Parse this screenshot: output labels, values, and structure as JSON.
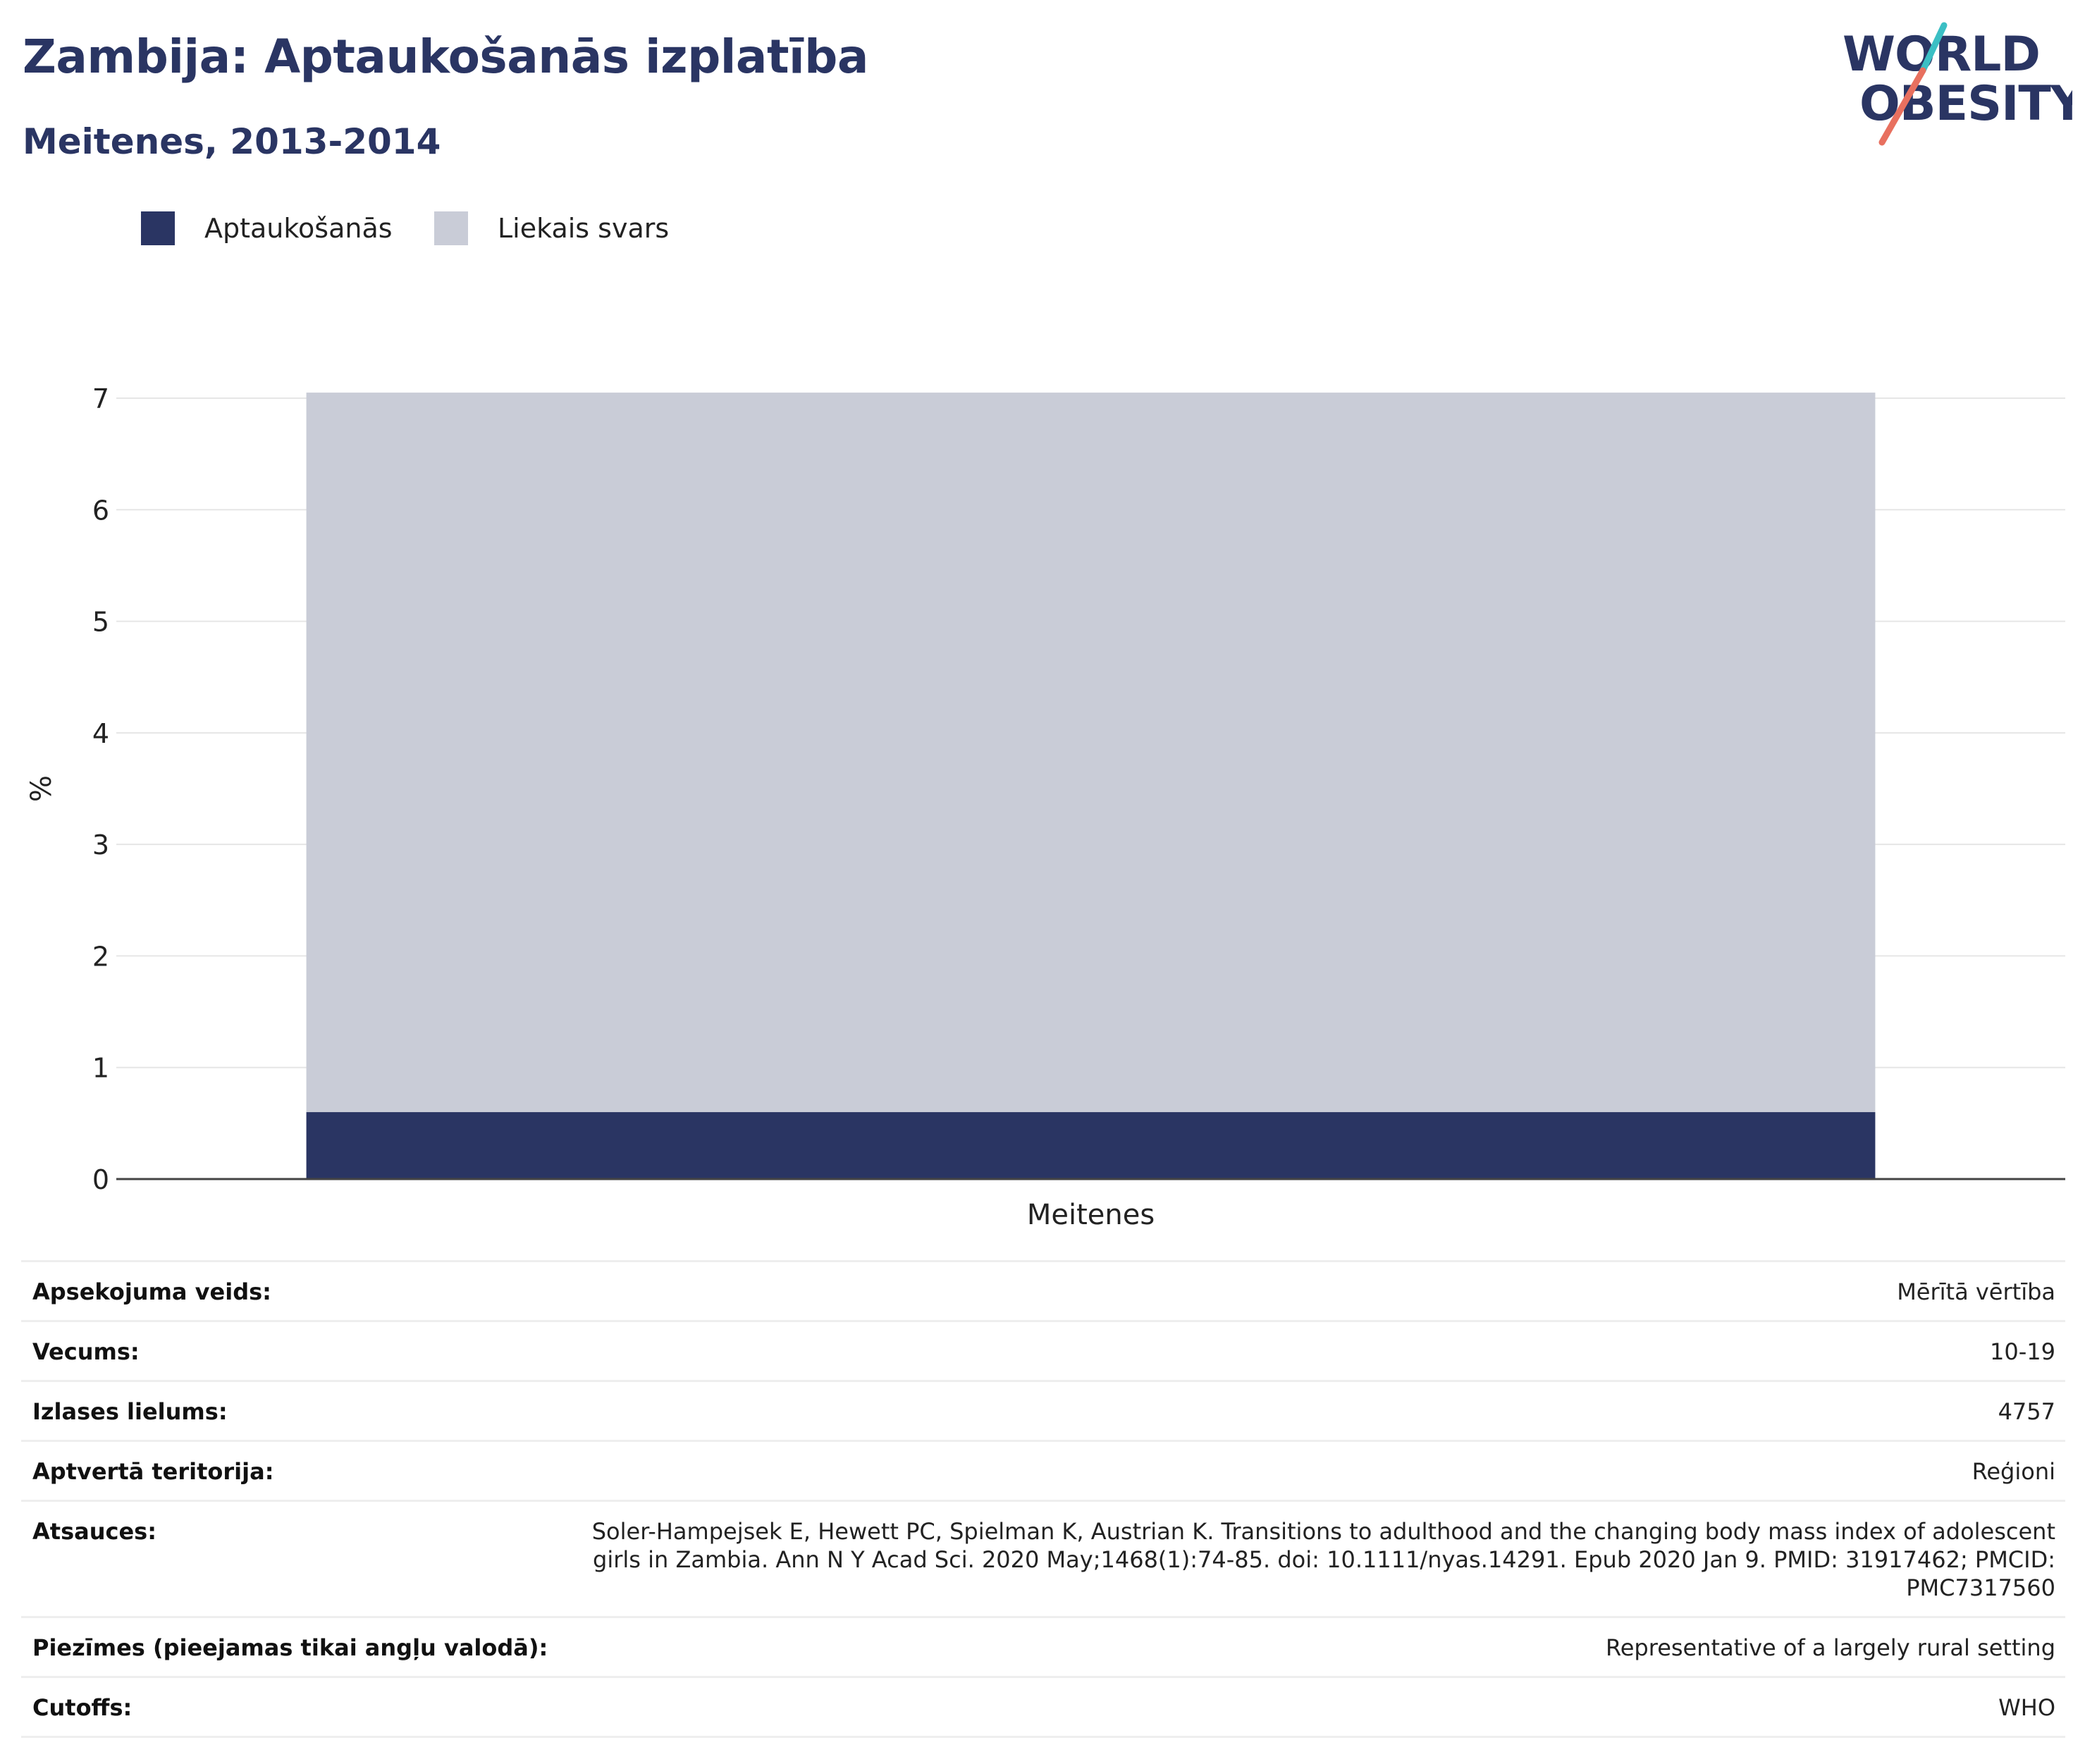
{
  "header": {
    "title": "Zambija: Aptaukošanās izplatība",
    "subtitle": "Meitenes, 2013-2014"
  },
  "logo": {
    "line1": "WORLD",
    "line2": "OBESITY",
    "colors": {
      "text": "#2a3563",
      "slash_top": "#3bbfc4",
      "slash_bottom": "#e8705f"
    }
  },
  "colors": {
    "obesity": "#2a3563",
    "overweight": "#c9ccd7",
    "title": "#2a3563"
  },
  "chart_data": {
    "type": "bar",
    "stacked": true,
    "categories": [
      "Meitenes"
    ],
    "series": [
      {
        "name": "Aptaukošanās",
        "values": [
          0.6
        ],
        "color": "#2a3563"
      },
      {
        "name": "Liekais svars",
        "values": [
          6.45
        ],
        "color": "#c9ccd7"
      }
    ],
    "ylabel": "%",
    "ylim": [
      0,
      7
    ],
    "yticks": [
      0,
      1,
      2,
      3,
      4,
      5,
      6,
      7
    ],
    "grid": true,
    "legend_position": "top-left"
  },
  "table": {
    "rows": [
      {
        "key": "Apsekojuma veids:",
        "value": "Mērītā vērtība"
      },
      {
        "key": "Vecums:",
        "value": "10-19"
      },
      {
        "key": "Izlases lielums:",
        "value": "4757"
      },
      {
        "key": "Aptvertā teritorija:",
        "value": "Reģioni"
      },
      {
        "key": "Atsauces:",
        "value": "Soler-Hampejsek E, Hewett PC, Spielman K, Austrian K. Transitions to adulthood and the changing body mass index of adolescent girls in Zambia. Ann N Y Acad Sci. 2020 May;1468(1):74-85. doi: 10.1111/nyas.14291. Epub 2020 Jan 9. PMID: 31917462; PMCID: PMC7317560"
      },
      {
        "key": "Piezīmes (pieejamas tikai angļu valodā):",
        "value": "Representative of a largely rural setting"
      },
      {
        "key": "Cutoffs:",
        "value": "WHO"
      }
    ]
  }
}
